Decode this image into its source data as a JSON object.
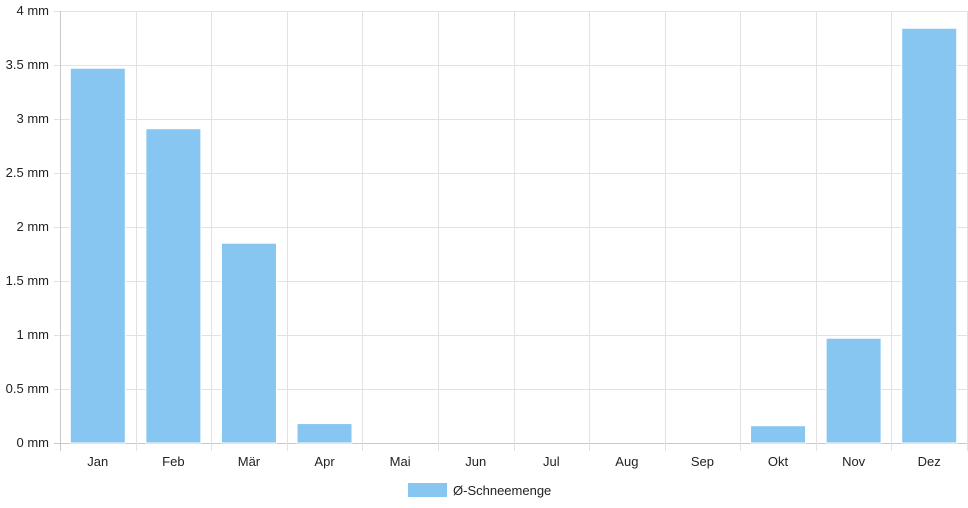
{
  "chart_data": {
    "type": "bar",
    "categories": [
      "Jan",
      "Feb",
      "Mär",
      "Apr",
      "Mai",
      "Jun",
      "Jul",
      "Aug",
      "Sep",
      "Okt",
      "Nov",
      "Dez"
    ],
    "series": [
      {
        "name": "Ø-Schneemenge",
        "values": [
          3.47,
          2.91,
          1.85,
          0.18,
          0,
          0,
          0,
          0,
          0,
          0.16,
          0.97,
          3.84
        ]
      }
    ],
    "ylim": [
      0,
      4
    ],
    "yticks": [
      0,
      0.5,
      1,
      1.5,
      2,
      2.5,
      3,
      3.5,
      4
    ],
    "yunit": "mm",
    "ytick_labels": [
      "0 mm",
      "0.5 mm",
      "1 mm",
      "1.5 mm",
      "2 mm",
      "2.5 mm",
      "3 mm",
      "3.5 mm",
      "4 mm"
    ],
    "grid": true,
    "legend_position": "bottom",
    "colors": {
      "bar_fill": "#87c6f1",
      "grid": "#e2e2e2",
      "axis": "#c8c8c8"
    }
  }
}
